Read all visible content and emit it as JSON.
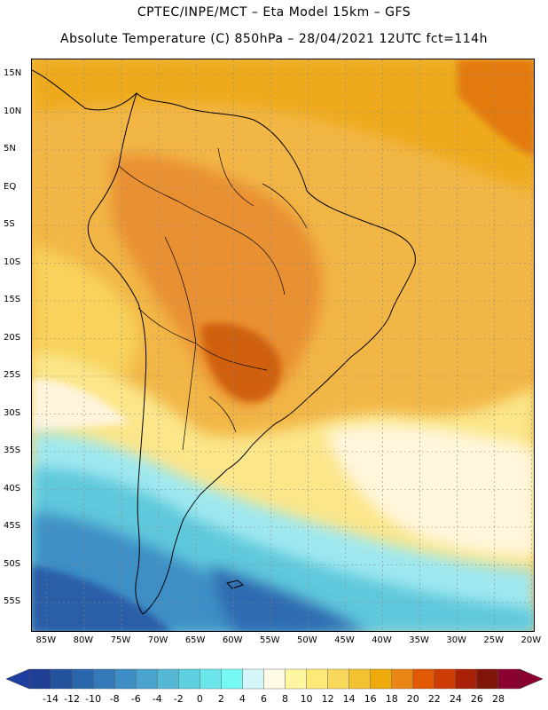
{
  "header": {
    "title_line1": "CPTEC/INPE/MCT –  Eta Model 15km – GFS",
    "title_line2": "Absolute Temperature (C) 850hPa – 28/04/2021 12UTC fct=114h"
  },
  "map": {
    "lat_labels": [
      "15N",
      "10N",
      "5N",
      "EQ",
      "5S",
      "10S",
      "15S",
      "20S",
      "25S",
      "30S",
      "35S",
      "40S",
      "45S",
      "50S",
      "55S"
    ],
    "lon_labels": [
      "85W",
      "80W",
      "75W",
      "70W",
      "65W",
      "60W",
      "55W",
      "50W",
      "45W",
      "40W",
      "35W",
      "30W",
      "25W",
      "20W"
    ],
    "lat_values": [
      15,
      10,
      5,
      0,
      -5,
      -10,
      -15,
      -20,
      -25,
      -30,
      -35,
      -40,
      -45,
      -50,
      -55
    ],
    "lon_values": [
      -85,
      -80,
      -75,
      -70,
      -65,
      -60,
      -55,
      -50,
      -45,
      -40,
      -35,
      -30,
      -25,
      -20
    ]
  },
  "colorbar": {
    "labels": [
      "-14",
      "-12",
      "-10",
      "-8",
      "-6",
      "-4",
      "-2",
      "0",
      "2",
      "4",
      "6",
      "8",
      "10",
      "12",
      "14",
      "16",
      "18",
      "20",
      "22",
      "24",
      "26",
      "28"
    ],
    "under_color": "#1f3fa0",
    "over_color": "#8a0030",
    "colors": [
      "#1f3f94",
      "#24539e",
      "#2a66ab",
      "#3479b8",
      "#3e8dc4",
      "#49a3cd",
      "#55b9d6",
      "#5ecfe0",
      "#6ae6ea",
      "#76f8f5",
      "#d4f6fa",
      "#fffae6",
      "#fff6a2",
      "#fcea78",
      "#f8d85a",
      "#f2c232",
      "#eeaa0a",
      "#e98616",
      "#e35a06",
      "#cc3c04",
      "#a82008",
      "#7f1408",
      "#8a0030"
    ]
  },
  "legend_colors": {
    "sea_warm": "#f0b040",
    "land_hot": "#e88a28",
    "cold_south": "#3f86c4",
    "cream": "#fff6dc"
  }
}
